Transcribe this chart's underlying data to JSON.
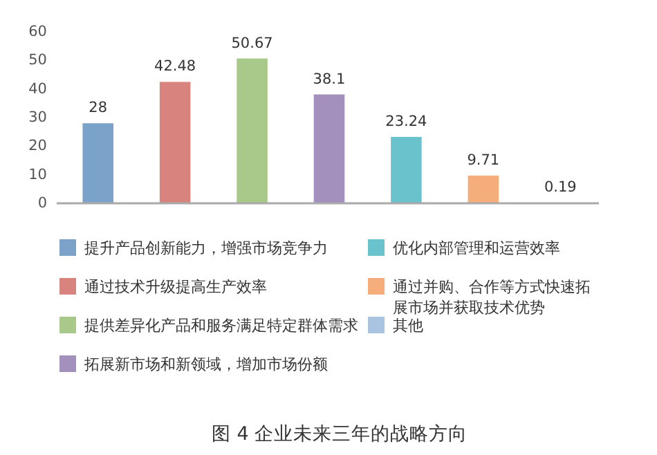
{
  "chart_data": {
    "type": "bar",
    "title": "图 4  企业未来三年的战略方向",
    "categories": [
      null,
      null,
      null,
      null,
      null,
      null,
      null
    ],
    "series": [
      {
        "name": "提升产品创新能力，增强市场竞争力",
        "color": "#7ba3c9",
        "values": [
          28,
          null,
          null,
          null,
          null,
          null,
          null
        ]
      },
      {
        "name": "通过技术升级提高生产效率",
        "color": "#d9837e",
        "values": [
          null,
          42.48,
          null,
          null,
          null,
          null,
          null
        ]
      },
      {
        "name": "提供差异化产品和服务满足特定群体需求",
        "color": "#a8c98a",
        "values": [
          null,
          null,
          50.67,
          null,
          null,
          null,
          null
        ]
      },
      {
        "name": "拓展新市场和新领域，增加市场份额",
        "color": "#a390bd",
        "values": [
          null,
          null,
          null,
          38.1,
          null,
          null,
          null
        ]
      },
      {
        "name": "优化内部管理和运营效率",
        "color": "#6ac3cc",
        "values": [
          null,
          null,
          null,
          null,
          23.24,
          null,
          null
        ]
      },
      {
        "name": "通过并购、合作等方式快速拓展市场并获取技术优势",
        "color": "#f4ad7b",
        "values": [
          null,
          null,
          null,
          null,
          null,
          9.71,
          null
        ]
      },
      {
        "name": "其他",
        "color": "#a9c4e0",
        "values": [
          null,
          null,
          null,
          null,
          null,
          null,
          0.19
        ]
      }
    ],
    "ylim": [
      0,
      60
    ],
    "yticks": [
      0,
      10,
      20,
      30,
      40,
      50,
      60
    ],
    "grid": false,
    "data_labels": true,
    "legend": "bottom"
  }
}
